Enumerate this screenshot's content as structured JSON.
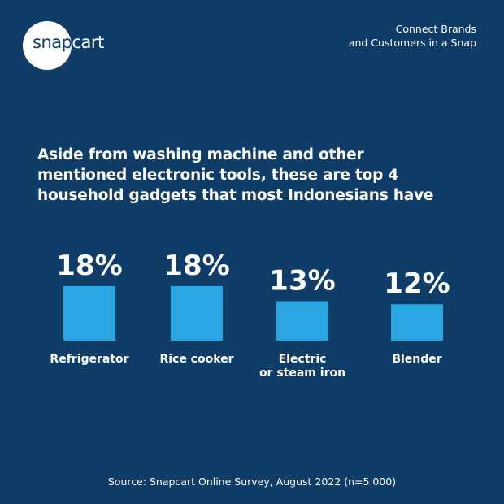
{
  "brand": {
    "logo_part1": "snap",
    "logo_part2": "cart",
    "tagline_line1": "Connect Brands",
    "tagline_line2": "and Customers in a Snap"
  },
  "headline": {
    "line1": "Aside from washing machine and other",
    "line2": "mentioned electronic tools, these are top 4",
    "line3": "household gadgets that most Indonesians have"
  },
  "source": "Source: Snapcart Online Survey, August 2022 (n=5.000)",
  "colors": {
    "background": "#0f3d68",
    "bar": "#29a6e1",
    "text": "#ffffff"
  },
  "chart_data": {
    "type": "bar",
    "title": "",
    "xlabel": "",
    "ylabel": "",
    "categories": [
      [
        "Refrigerator"
      ],
      [
        "Rice cooker"
      ],
      [
        "Electric",
        "or steam iron"
      ],
      [
        "Blender"
      ]
    ],
    "values": [
      18,
      18,
      13,
      12
    ],
    "value_labels": [
      "18%",
      "18%",
      "13%",
      "12%"
    ],
    "unit": "%",
    "grid": false,
    "legend": "none"
  }
}
